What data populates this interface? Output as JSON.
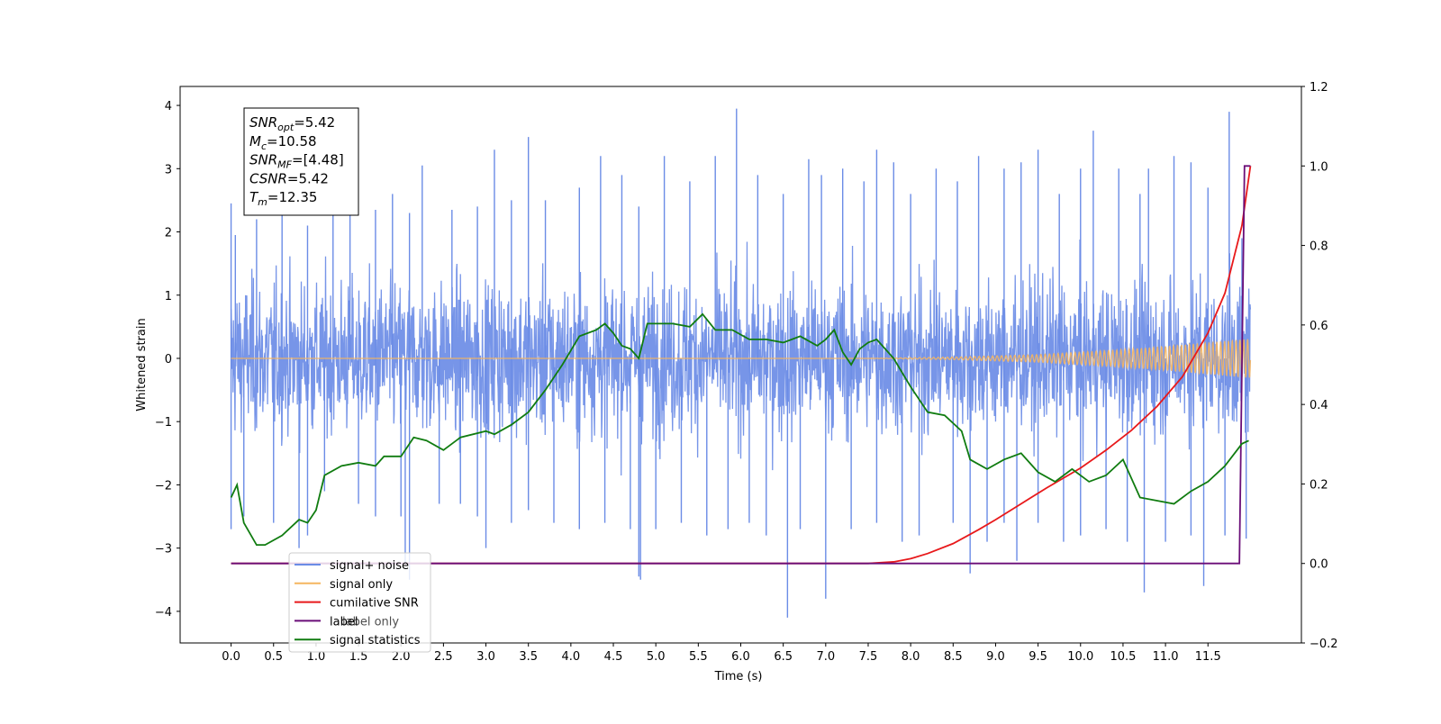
{
  "chart_data": {
    "type": "line",
    "xlabel": "Time (s)",
    "ylabel": "Whitened strain",
    "xlim": [
      -0.6,
      12.6
    ],
    "ylim": [
      -4.5,
      4.3
    ],
    "y2lim": [
      -0.2,
      1.2
    ],
    "x_ticks": [
      "0.0",
      "0.5",
      "1.0",
      "1.5",
      "2.0",
      "2.5",
      "3.0",
      "3.5",
      "4.0",
      "4.5",
      "5.0",
      "5.5",
      "6.0",
      "6.5",
      "7.0",
      "7.5",
      "8.0",
      "8.5",
      "9.0",
      "9.5",
      "10.0",
      "10.5",
      "11.0",
      "11.5"
    ],
    "y_ticks": [
      "4",
      "3",
      "2",
      "1",
      "0",
      "−1",
      "−2",
      "−3",
      "−4"
    ],
    "y2_ticks": [
      "1.2",
      "1.0",
      "0.8",
      "0.6",
      "0.4",
      "0.2",
      "0.0",
      "−0.2"
    ],
    "stats": [
      {
        "base": "SNR",
        "sub": "opt",
        "value": "=5.42"
      },
      {
        "base": "M",
        "sub": "c",
        "value": "=10.58"
      },
      {
        "base": "SNR",
        "sub": "MF",
        "value": "=[4.48]"
      },
      {
        "base": "CSNR",
        "sub": "",
        "value": "=5.42"
      },
      {
        "base": "T",
        "sub": "m",
        "value": "=12.35"
      }
    ],
    "legend": [
      "signal+ noise",
      "signal only",
      "cumilative SNR",
      "label",
      "label only",
      "signal statistics"
    ],
    "series": [
      {
        "name": "signal+ noise",
        "axis": "left",
        "color": "#6b8ce6",
        "noise_spread": 1.6,
        "spikes": [
          [
            0.0,
            2.45
          ],
          [
            0.05,
            1.95
          ],
          [
            0.3,
            2.2
          ],
          [
            0.6,
            2.3
          ],
          [
            0.9,
            2.1
          ],
          [
            1.2,
            2.5
          ],
          [
            1.4,
            2.3
          ],
          [
            1.7,
            2.35
          ],
          [
            1.9,
            2.6
          ],
          [
            2.1,
            2.3
          ],
          [
            2.25,
            3.05
          ],
          [
            2.6,
            2.35
          ],
          [
            2.9,
            2.4
          ],
          [
            3.1,
            3.3
          ],
          [
            3.3,
            2.5
          ],
          [
            3.5,
            3.5
          ],
          [
            3.7,
            2.5
          ],
          [
            4.1,
            2.7
          ],
          [
            4.35,
            3.2
          ],
          [
            4.6,
            2.9
          ],
          [
            4.8,
            2.4
          ],
          [
            5.1,
            3.2
          ],
          [
            5.4,
            2.8
          ],
          [
            5.7,
            3.2
          ],
          [
            5.95,
            3.95
          ],
          [
            6.2,
            2.9
          ],
          [
            6.5,
            2.6
          ],
          [
            6.8,
            3.15
          ],
          [
            6.95,
            2.9
          ],
          [
            7.2,
            3.0
          ],
          [
            7.45,
            2.8
          ],
          [
            7.6,
            3.3
          ],
          [
            7.8,
            3.1
          ],
          [
            8.0,
            2.6
          ],
          [
            8.3,
            3.0
          ],
          [
            8.55,
            2.8
          ],
          [
            8.8,
            3.2
          ],
          [
            9.1,
            3.0
          ],
          [
            9.3,
            3.1
          ],
          [
            9.5,
            3.3
          ],
          [
            9.75,
            2.6
          ],
          [
            10.0,
            3.0
          ],
          [
            10.15,
            3.6
          ],
          [
            10.45,
            3.0
          ],
          [
            10.7,
            2.6
          ],
          [
            10.8,
            3.0
          ],
          [
            11.1,
            3.2
          ],
          [
            11.3,
            3.1
          ],
          [
            11.5,
            2.7
          ],
          [
            11.75,
            3.9
          ],
          [
            11.9,
            1.9
          ],
          [
            0.0,
            -2.7
          ],
          [
            0.15,
            -2.5
          ],
          [
            0.5,
            -2.6
          ],
          [
            0.8,
            -3.0
          ],
          [
            0.9,
            -2.8
          ],
          [
            1.1,
            -2.1
          ],
          [
            1.5,
            -2.3
          ],
          [
            1.7,
            -2.5
          ],
          [
            2.0,
            -2.5
          ],
          [
            2.05,
            -3.25
          ],
          [
            2.1,
            -3.5
          ],
          [
            2.45,
            -2.3
          ],
          [
            2.7,
            -2.3
          ],
          [
            2.9,
            -2.5
          ],
          [
            3.0,
            -3.0
          ],
          [
            3.3,
            -2.6
          ],
          [
            3.5,
            -2.4
          ],
          [
            3.8,
            -2.6
          ],
          [
            4.1,
            -2.7
          ],
          [
            4.4,
            -2.6
          ],
          [
            4.7,
            -2.7
          ],
          [
            4.8,
            -3.45
          ],
          [
            4.82,
            -3.5
          ],
          [
            5.0,
            -2.7
          ],
          [
            5.3,
            -2.6
          ],
          [
            5.6,
            -2.8
          ],
          [
            5.85,
            -2.7
          ],
          [
            6.1,
            -2.6
          ],
          [
            6.3,
            -2.8
          ],
          [
            6.55,
            -4.1
          ],
          [
            6.7,
            -2.7
          ],
          [
            7.0,
            -3.8
          ],
          [
            7.3,
            -2.7
          ],
          [
            7.6,
            -2.6
          ],
          [
            7.9,
            -2.9
          ],
          [
            8.1,
            -2.8
          ],
          [
            8.5,
            -2.6
          ],
          [
            8.7,
            -3.4
          ],
          [
            8.9,
            -2.9
          ],
          [
            9.1,
            -2.6
          ],
          [
            9.25,
            -3.2
          ],
          [
            9.5,
            -2.6
          ],
          [
            9.8,
            -2.9
          ],
          [
            10.0,
            -2.8
          ],
          [
            10.3,
            -2.7
          ],
          [
            10.55,
            -2.9
          ],
          [
            10.75,
            -3.7
          ],
          [
            11.0,
            -2.9
          ],
          [
            11.3,
            -2.8
          ],
          [
            11.45,
            -3.6
          ],
          [
            11.7,
            -2.8
          ],
          [
            11.95,
            -2.85
          ]
        ]
      },
      {
        "name": "signal only",
        "axis": "left",
        "color": "#f5b55f",
        "envelope": [
          [
            0.0,
            0.0
          ],
          [
            7.5,
            0.0
          ],
          [
            8.5,
            0.02
          ],
          [
            9.5,
            0.06
          ],
          [
            10.5,
            0.14
          ],
          [
            11.0,
            0.19
          ],
          [
            11.5,
            0.25
          ],
          [
            12.0,
            0.31
          ]
        ]
      },
      {
        "name": "cumilative SNR",
        "axis": "right",
        "color": "#e8191b",
        "x": [
          0.0,
          7.0,
          7.5,
          7.8,
          8.0,
          8.2,
          8.5,
          8.8,
          9.0,
          9.3,
          9.6,
          10.0,
          10.3,
          10.6,
          10.9,
          11.2,
          11.5,
          11.7,
          11.9,
          12.0
        ],
        "y": [
          0.0,
          0.0,
          0.0,
          0.004,
          0.012,
          0.025,
          0.05,
          0.085,
          0.11,
          0.15,
          0.19,
          0.24,
          0.285,
          0.335,
          0.395,
          0.47,
          0.58,
          0.68,
          0.85,
          1.0
        ]
      },
      {
        "name": "label",
        "axis": "right",
        "color": "#6a0e78",
        "x": [
          0.0,
          11.87,
          11.93,
          12.0
        ],
        "y": [
          0.0,
          0.0,
          1.0,
          1.0
        ]
      },
      {
        "name": "signal statistics",
        "axis": "left",
        "color": "#107c10",
        "x": [
          0.0,
          0.07,
          0.15,
          0.3,
          0.4,
          0.6,
          0.8,
          0.9,
          1.0,
          1.1,
          1.3,
          1.5,
          1.7,
          1.8,
          2.0,
          2.15,
          2.3,
          2.5,
          2.7,
          3.0,
          3.1,
          3.3,
          3.5,
          3.7,
          3.9,
          4.1,
          4.3,
          4.4,
          4.5,
          4.6,
          4.7,
          4.8,
          4.9,
          5.0,
          5.2,
          5.4,
          5.55,
          5.7,
          5.9,
          6.1,
          6.3,
          6.5,
          6.7,
          6.9,
          7.0,
          7.1,
          7.2,
          7.3,
          7.4,
          7.5,
          7.6,
          7.7,
          7.8,
          8.0,
          8.2,
          8.4,
          8.6,
          8.7,
          8.9,
          9.1,
          9.3,
          9.5,
          9.7,
          9.9,
          10.1,
          10.3,
          10.5,
          10.7,
          10.9,
          11.1,
          11.3,
          11.5,
          11.7,
          11.9,
          11.98
        ],
        "y": [
          -2.2,
          -2.0,
          -2.6,
          -2.95,
          -2.95,
          -2.8,
          -2.55,
          -2.6,
          -2.4,
          -1.85,
          -1.7,
          -1.65,
          -1.7,
          -1.55,
          -1.55,
          -1.25,
          -1.3,
          -1.45,
          -1.25,
          -1.15,
          -1.2,
          -1.05,
          -0.85,
          -0.5,
          -0.1,
          0.35,
          0.45,
          0.55,
          0.4,
          0.2,
          0.15,
          0.0,
          0.55,
          0.55,
          0.55,
          0.5,
          0.7,
          0.45,
          0.45,
          0.3,
          0.3,
          0.25,
          0.35,
          0.2,
          0.3,
          0.45,
          0.1,
          -0.1,
          0.15,
          0.25,
          0.3,
          0.15,
          0.0,
          -0.45,
          -0.85,
          -0.9,
          -1.15,
          -1.6,
          -1.75,
          -1.6,
          -1.5,
          -1.8,
          -1.95,
          -1.75,
          -1.95,
          -1.85,
          -1.6,
          -2.2,
          -2.25,
          -2.3,
          -2.1,
          -1.95,
          -1.7,
          -1.35,
          -1.3
        ]
      }
    ]
  }
}
